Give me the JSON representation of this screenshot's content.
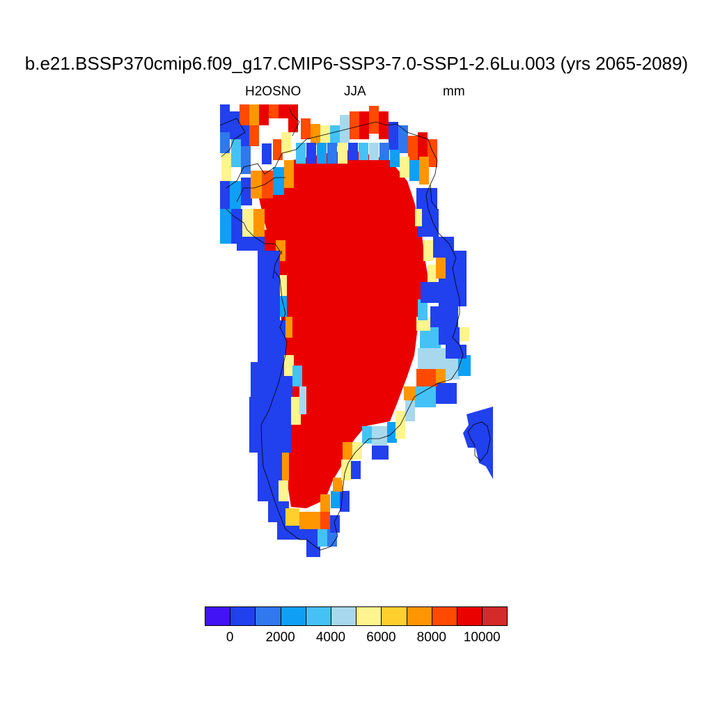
{
  "title": "b.e21.BSSP370cmip6.f09_g17.CMIP6-SSP3-7.0-SSP1-2.6Lu.003 (yrs 2065-2089)",
  "subtitle_left": "H2OSNO",
  "subtitle_center": "JJA",
  "subtitle_right": "mm",
  "colorbar": {
    "colors": [
      "#4213f5",
      "#2140ee",
      "#2f78ee",
      "#0fa0f5",
      "#44c2f5",
      "#a7d8ee",
      "#fff48d",
      "#ffd02d",
      "#ff9600",
      "#ff4a00",
      "#eb0000",
      "#d42a2a"
    ],
    "labels": [
      "0",
      "2000",
      "4000",
      "6000",
      "8000",
      "10000"
    ]
  },
  "map": {
    "region": "Greenland",
    "variable": "H2OSNO",
    "units": "mm",
    "interior_value_range": "10000+",
    "coastal_values": "mixed 0–10000"
  }
}
